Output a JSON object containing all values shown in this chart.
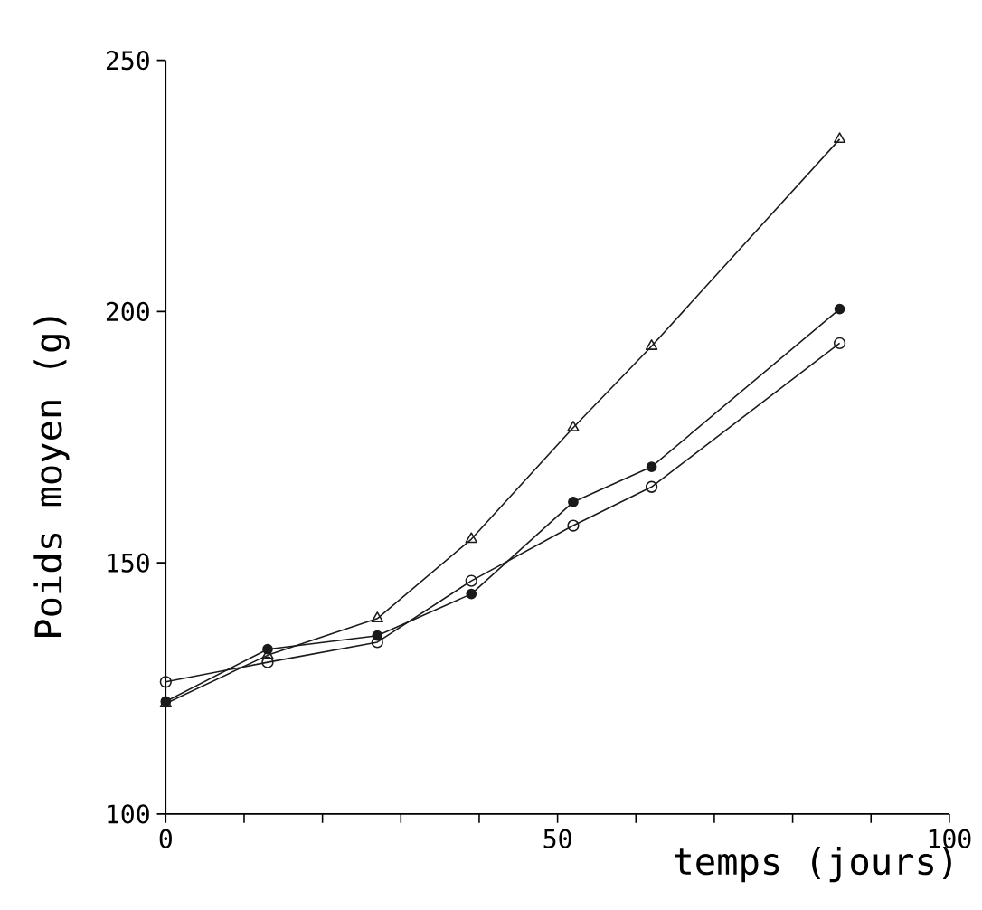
{
  "chart_data": {
    "type": "line",
    "xlabel": "temps (jours)",
    "ylabel": "Poids moyen (g)",
    "x": [
      0,
      13,
      27,
      39,
      52,
      62,
      86
    ],
    "series": [
      {
        "color": "#1a1a1a",
        "marker": "triangle",
        "values": [
          122,
          131.6,
          138.9,
          154.7,
          176.9,
          193.1,
          234.3
        ]
      },
      {
        "color": "#1a1a1a",
        "marker": "circle",
        "values": [
          122.4,
          132.8,
          135.5,
          143.8,
          162.1,
          169.1,
          200.5
        ]
      },
      {
        "color": "#1a1a1a",
        "marker": "open circle",
        "values": [
          126.3,
          130.2,
          134.2,
          146.4,
          157.4,
          165.1,
          193.7
        ]
      }
    ],
    "xlim": [
      0,
      100
    ],
    "ylim": [
      100,
      250
    ],
    "xticks": [
      0,
      {
        "value": 10,
        "label": null
      },
      {
        "value": 20,
        "label": null
      },
      {
        "value": 30,
        "label": null
      },
      {
        "value": 40,
        "label": null
      },
      50,
      {
        "value": 60,
        "label": null
      },
      {
        "value": 70,
        "label": null
      },
      {
        "value": 80,
        "label": null
      },
      {
        "value": 90,
        "label": null
      },
      100
    ],
    "yticks": [
      100,
      150,
      200,
      250
    ],
    "grid": false,
    "line_style": "solid"
  }
}
